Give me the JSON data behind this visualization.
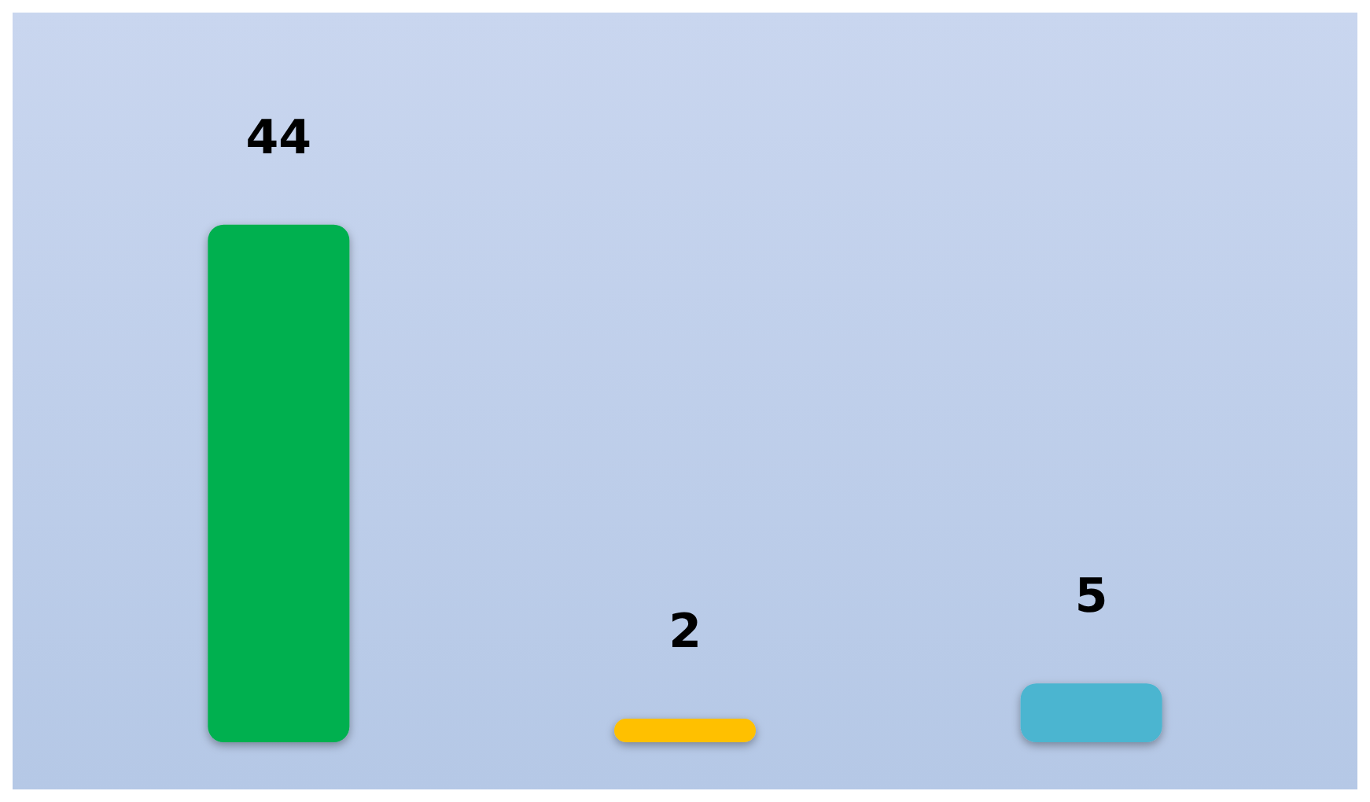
{
  "chart_data": {
    "type": "bar",
    "categories": [
      null,
      null,
      null
    ],
    "values": [
      44,
      2,
      5
    ],
    "colors": [
      "#00b050",
      "#ffc000",
      "#4bb5d0"
    ],
    "data_labels": true,
    "tick_labels": false,
    "grid": false
  }
}
